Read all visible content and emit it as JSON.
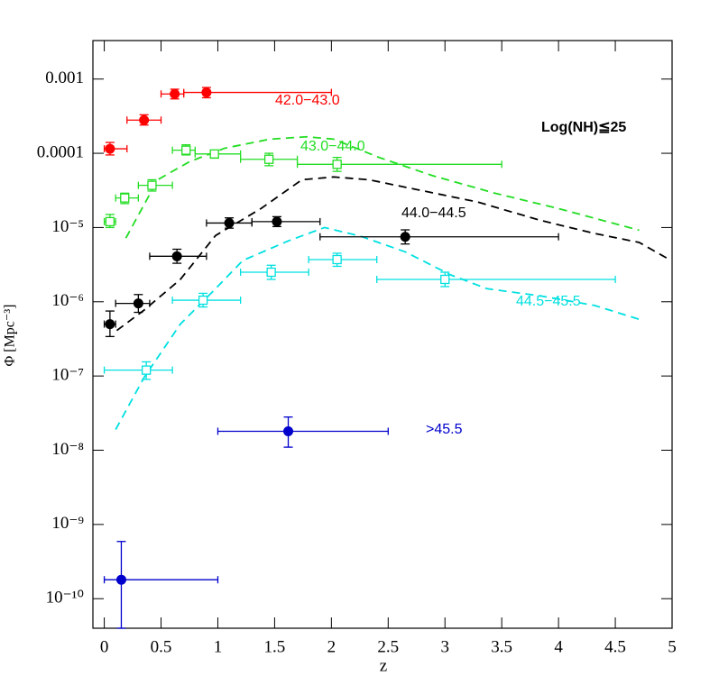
{
  "chart_data": {
    "type": "scatter",
    "log_y": true,
    "xlabel": "z",
    "ylabel": "Φ [Mpc⁻³]",
    "annotation": "Log(NH)≦25",
    "xlim": [
      -0.1,
      5.0
    ],
    "xticks": [
      0,
      0.5,
      1,
      1.5,
      2,
      2.5,
      3,
      3.5,
      4,
      4.5,
      5
    ],
    "ylim": [
      4e-11,
      0.0033
    ],
    "yticks": [
      0.001,
      0.0001,
      {
        "value": 1e-05,
        "label": "10⁻⁵"
      },
      {
        "value": 1e-06,
        "label": "10⁻⁶"
      },
      {
        "value": 1e-07,
        "label": "10⁻⁷"
      },
      {
        "value": 1e-08,
        "label": "10⁻⁸"
      },
      {
        "value": 1e-09,
        "label": "10⁻⁹"
      },
      {
        "value": 1e-10,
        "label": "10⁻¹⁰"
      }
    ],
    "series": [
      {
        "name": "42.0−43.0",
        "color": "#ff0000",
        "marker": "filled-circle",
        "x": [
          0.05,
          0.35,
          0.62,
          0.9
        ],
        "xlo": [
          0,
          0.2,
          0.5,
          0.7
        ],
        "xhi": [
          0.2,
          0.5,
          0.7,
          2.0
        ],
        "values": [
          0.000115,
          0.00028,
          0.00063,
          0.00066
        ],
        "ylo": [
          9.5e-05,
          0.00024,
          0.00054,
          0.00056
        ],
        "yhi": [
          0.00014,
          0.00033,
          0.00073,
          0.00077
        ]
      },
      {
        "name": "43.0−44.0",
        "color": "#22dd22",
        "marker": "open-square",
        "x": [
          0.05,
          0.18,
          0.42,
          0.72,
          0.97,
          1.45,
          2.05
        ],
        "xlo": [
          0,
          0.1,
          0.3,
          0.6,
          0.8,
          1.2,
          1.7
        ],
        "xhi": [
          0.1,
          0.3,
          0.6,
          0.8,
          1.2,
          1.7,
          3.5
        ],
        "values": [
          1.2e-05,
          2.5e-05,
          3.7e-05,
          0.00011,
          9.8e-05,
          8.3e-05,
          7.1e-05
        ],
        "ylo": [
          1e-05,
          2.1e-05,
          3.1e-05,
          9.5e-05,
          8.6e-05,
          6.8e-05,
          5.7e-05
        ],
        "yhi": [
          1.5e-05,
          2.9e-05,
          4.4e-05,
          0.00013,
          0.00011,
          0.0001,
          8.8e-05
        ]
      },
      {
        "name": "44.0−44.5",
        "color": "#000000",
        "marker": "filled-circle",
        "x": [
          0.05,
          0.3,
          0.64,
          1.1,
          1.52,
          2.65
        ],
        "xlo": [
          0,
          0.1,
          0.4,
          0.9,
          1.3,
          1.9
        ],
        "xhi": [
          0.1,
          0.4,
          0.9,
          1.3,
          1.9,
          4.0
        ],
        "values": [
          5e-07,
          9.5e-07,
          4.1e-06,
          1.15e-05,
          1.2e-05,
          7.5e-06
        ],
        "ylo": [
          3.4e-07,
          7.2e-07,
          3.3e-06,
          9.8e-06,
          1.03e-05,
          6e-06
        ],
        "yhi": [
          7.5e-07,
          1.25e-06,
          5.1e-06,
          1.35e-05,
          1.4e-05,
          9.3e-06
        ]
      },
      {
        "name": "44.5−45.5",
        "color": "#00e0e0",
        "marker": "open-square",
        "x": [
          0.37,
          0.87,
          1.47,
          2.05,
          3.0
        ],
        "xlo": [
          0,
          0.6,
          1.2,
          1.8,
          2.4
        ],
        "xhi": [
          0.6,
          1.2,
          1.8,
          2.4,
          4.5
        ],
        "values": [
          1.2e-07,
          1.05e-06,
          2.5e-06,
          3.7e-06,
          2e-06
        ],
        "ylo": [
          9e-08,
          8.5e-07,
          2e-06,
          3e-06,
          1.6e-06
        ],
        "yhi": [
          1.55e-07,
          1.3e-06,
          3.1e-06,
          4.5e-06,
          2.5e-06
        ]
      },
      {
        "name": ">45.5",
        "color": "#0000cc",
        "marker": "filled-circle",
        "x": [
          1.62,
          0.15
        ],
        "xlo": [
          1.0,
          0
        ],
        "xhi": [
          2.5,
          1.0
        ],
        "values": [
          1.8e-08,
          1.8e-10
        ],
        "ylo": [
          1.1e-08,
          4e-11
        ],
        "yhi": [
          2.8e-08,
          5.9e-10
        ]
      }
    ],
    "curves": [
      {
        "color": "#22dd22",
        "x": [
          0.19,
          0.47,
          0.75,
          1.06,
          1.46,
          1.78,
          2.02,
          2.41,
          2.89,
          3.44,
          4.0,
          4.71
        ],
        "values": [
          7.2e-06,
          4.4e-05,
          7.7e-05,
          0.000117,
          0.000155,
          0.000167,
          0.000155,
          8.9e-05,
          5e-05,
          2.9e-05,
          1.8e-05,
          9.2e-06
        ]
      },
      {
        "color": "#000000",
        "x": [
          0.11,
          0.35,
          0.67,
          0.98,
          1.38,
          1.74,
          2.02,
          2.33,
          2.73,
          3.29,
          3.84,
          4.32,
          4.71,
          4.99
        ],
        "values": [
          4.1e-07,
          7.7e-07,
          2e-06,
          7.8e-06,
          1.8e-05,
          4.4e-05,
          4.8e-05,
          4.4e-05,
          3.3e-05,
          2.2e-05,
          1.25e-05,
          8.3e-06,
          6.3e-06,
          3.6e-06
        ]
      },
      {
        "color": "#00e0e0",
        "x": [
          0.1,
          0.35,
          0.67,
          0.98,
          1.22,
          1.62,
          1.94,
          2.25,
          2.65,
          3.05,
          3.37,
          3.84,
          4.32,
          4.71
        ],
        "values": [
          1.9e-08,
          9.5e-08,
          5e-07,
          1.5e-06,
          3.6e-06,
          6.6e-06,
          1e-05,
          7.7e-06,
          4.7e-06,
          2.3e-06,
          1.5e-06,
          1.2e-06,
          8.9e-07,
          5.8e-07
        ]
      }
    ]
  }
}
